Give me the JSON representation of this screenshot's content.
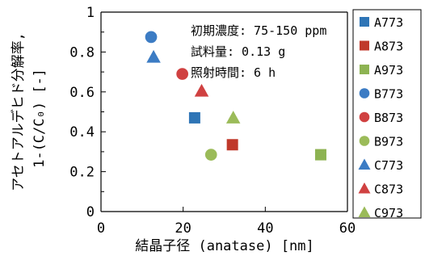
{
  "chart_data": {
    "type": "scatter",
    "title": "",
    "xlabel": "結晶子径 (anatase) [nm]",
    "ylabel_line1": "アセトアルデヒド分解率,",
    "ylabel_line2": "1-(C/C₀) [-]",
    "xlim": [
      0,
      60
    ],
    "ylim": [
      0,
      1
    ],
    "x_ticks": [
      0,
      20,
      40,
      60
    ],
    "y_ticks": [
      0,
      0.2,
      0.4,
      0.6,
      0.8,
      1
    ],
    "x_tick_labels": [
      "0",
      "20",
      "40",
      "60"
    ],
    "y_tick_labels": [
      "0",
      "0.2",
      "0.4",
      "0.6",
      "0.8",
      "1"
    ],
    "grid": false,
    "legend_position": "right",
    "annotations": [
      "初期濃度: 75-150 ppm",
      "試料量: 0.13 g",
      "照射時間: 6 h"
    ],
    "series": [
      {
        "name": "A773",
        "marker": "square",
        "color": "#2E75B6",
        "points": [
          [
            22.8,
            0.47
          ]
        ]
      },
      {
        "name": "A873",
        "marker": "square",
        "color": "#C0392B",
        "points": [
          [
            32,
            0.335
          ]
        ]
      },
      {
        "name": "A973",
        "marker": "square",
        "color": "#8DB352",
        "points": [
          [
            53.5,
            0.285
          ]
        ]
      },
      {
        "name": "B773",
        "marker": "circle",
        "color": "#3C7CC4",
        "points": [
          [
            12.2,
            0.875
          ]
        ]
      },
      {
        "name": "B873",
        "marker": "circle",
        "color": "#D04141",
        "points": [
          [
            19.8,
            0.69
          ]
        ]
      },
      {
        "name": "B973",
        "marker": "circle",
        "color": "#9BBB59",
        "points": [
          [
            26.8,
            0.285
          ]
        ]
      },
      {
        "name": "C773",
        "marker": "triangle",
        "color": "#3C7CC4",
        "points": [
          [
            12.8,
            0.775
          ]
        ]
      },
      {
        "name": "C873",
        "marker": "triangle",
        "color": "#D04141",
        "points": [
          [
            24.5,
            0.605
          ]
        ]
      },
      {
        "name": "C973",
        "marker": "triangle",
        "color": "#9BBB59",
        "points": [
          [
            32.2,
            0.47
          ]
        ]
      }
    ]
  }
}
